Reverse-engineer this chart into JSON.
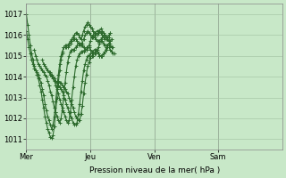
{
  "xlabel": "Pression niveau de la mer( hPa )",
  "bg_color": "#c8e8c8",
  "grid_color": "#a0c0a0",
  "line_color": "#2d6a2d",
  "marker": "+",
  "ylim": [
    1010.5,
    1017.5
  ],
  "yticks": [
    1011,
    1012,
    1013,
    1014,
    1015,
    1016,
    1017
  ],
  "xtick_labels": [
    "Mer",
    "Jeu",
    "Ven",
    "Sam"
  ],
  "xtick_positions": [
    0,
    48,
    96,
    144
  ],
  "xlim": [
    0,
    192
  ],
  "series": [
    {
      "x_start": 0,
      "y": [
        1017.0,
        1016.5,
        1016.0,
        1015.5,
        1015.1,
        1014.8,
        1014.5,
        1014.3,
        1014.1,
        1013.9,
        1013.6,
        1013.3,
        1012.9,
        1012.5,
        1012.1,
        1011.8,
        1011.5,
        1011.3,
        1011.1,
        1011.07,
        1011.2,
        1011.6,
        1012.3,
        1013.0,
        1013.7,
        1014.3,
        1014.8,
        1015.1,
        1015.4,
        1015.5,
        1015.5,
        1015.5,
        1015.6,
        1015.7,
        1015.8,
        1015.9,
        1016.0,
        1016.1,
        1016.1,
        1016.0,
        1015.9,
        1015.8,
        1016.0,
        1016.2,
        1016.4,
        1016.5,
        1016.6,
        1016.5,
        1016.4,
        1016.3,
        1016.2,
        1016.1,
        1016.0,
        1016.0,
        1016.1,
        1016.2,
        1016.3,
        1016.2,
        1016.1,
        1016.0,
        1015.9,
        1015.9,
        1016.0,
        1016.1
      ]
    },
    {
      "x_start": 0,
      "y": [
        1016.2,
        1015.8,
        1015.4,
        1015.1,
        1014.8,
        1014.6,
        1014.4,
        1014.3,
        1014.2,
        1014.1,
        1013.9,
        1013.7,
        1013.4,
        1013.1,
        1012.7,
        1012.4,
        1012.1,
        1011.9,
        1011.7,
        1011.5,
        1011.7,
        1012.1,
        1012.8,
        1013.5,
        1014.1,
        1014.6,
        1015.0,
        1015.2,
        1015.4,
        1015.4,
        1015.4,
        1015.4,
        1015.5,
        1015.6,
        1015.7,
        1015.8,
        1015.8,
        1015.8,
        1015.7,
        1015.6,
        1015.5,
        1015.5,
        1015.6,
        1015.8,
        1016.0,
        1016.1,
        1016.2,
        1016.1,
        1016.0,
        1015.9,
        1015.9,
        1016.0,
        1016.1,
        1016.2,
        1016.2,
        1016.2,
        1016.1,
        1016.0,
        1015.9,
        1015.8,
        1015.8,
        1015.8,
        1015.9,
        1016.1
      ]
    },
    {
      "x_start": 6,
      "y": [
        1015.3,
        1015.0,
        1014.8,
        1014.6,
        1014.5,
        1014.4,
        1014.3,
        1014.2,
        1014.1,
        1014.0,
        1013.8,
        1013.6,
        1013.3,
        1013.1,
        1012.8,
        1012.5,
        1012.3,
        1012.1,
        1011.9,
        1011.8,
        1012.0,
        1012.4,
        1013.0,
        1013.7,
        1014.2,
        1014.7,
        1015.0,
        1015.2,
        1015.3,
        1015.3,
        1015.3,
        1015.4,
        1015.5,
        1015.6,
        1015.6,
        1015.6,
        1015.5,
        1015.4,
        1015.3,
        1015.3,
        1015.4,
        1015.5,
        1015.7,
        1015.9,
        1016.0,
        1015.9,
        1015.8,
        1015.7,
        1015.7,
        1015.7,
        1015.8,
        1015.9,
        1016.0,
        1016.0,
        1015.9,
        1015.8,
        1015.7,
        1015.6
      ]
    },
    {
      "x_start": 12,
      "y": [
        1014.8,
        1014.6,
        1014.5,
        1014.4,
        1014.3,
        1014.2,
        1014.1,
        1014.0,
        1013.9,
        1013.8,
        1013.6,
        1013.4,
        1013.2,
        1012.9,
        1012.7,
        1012.5,
        1012.3,
        1012.1,
        1011.9,
        1011.8,
        1011.9,
        1012.3,
        1012.9,
        1013.5,
        1014.0,
        1014.5,
        1014.8,
        1015.0,
        1015.1,
        1015.2,
        1015.2,
        1015.2,
        1015.3,
        1015.4,
        1015.4,
        1015.4,
        1015.3,
        1015.2,
        1015.1,
        1015.1,
        1015.1,
        1015.3,
        1015.4,
        1015.6,
        1015.7,
        1015.7,
        1015.6,
        1015.5,
        1015.5,
        1015.5,
        1015.6,
        1015.7,
        1015.8
      ]
    },
    {
      "x_start": 18,
      "y": [
        1014.2,
        1014.1,
        1014.0,
        1013.9,
        1013.8,
        1013.7,
        1013.6,
        1013.5,
        1013.4,
        1013.3,
        1013.1,
        1012.9,
        1012.7,
        1012.5,
        1012.3,
        1012.1,
        1012.0,
        1011.8,
        1011.7,
        1011.7,
        1011.8,
        1012.2,
        1012.7,
        1013.3,
        1013.8,
        1014.3,
        1014.6,
        1014.8,
        1015.0,
        1015.0,
        1015.1,
        1015.1,
        1015.2,
        1015.3,
        1015.3,
        1015.2,
        1015.1,
        1015.0,
        1015.0,
        1015.0,
        1015.1,
        1015.2,
        1015.4,
        1015.5,
        1015.6,
        1015.5,
        1015.4,
        1015.4
      ]
    },
    {
      "x_start": 24,
      "y": [
        1013.8,
        1013.7,
        1013.7,
        1013.6,
        1013.5,
        1013.4,
        1013.3,
        1013.2,
        1013.0,
        1012.8,
        1012.7,
        1012.5,
        1012.3,
        1012.1,
        1012.0,
        1011.9,
        1011.9,
        1012.2,
        1012.6,
        1013.2,
        1013.7,
        1014.1,
        1014.5,
        1014.7,
        1014.9,
        1015.0,
        1015.0,
        1015.1,
        1015.2,
        1015.2,
        1015.1,
        1015.0,
        1015.0,
        1015.0,
        1015.1,
        1015.2,
        1015.3,
        1015.4,
        1015.4,
        1015.3,
        1015.2,
        1015.1,
        1015.1
      ]
    }
  ]
}
